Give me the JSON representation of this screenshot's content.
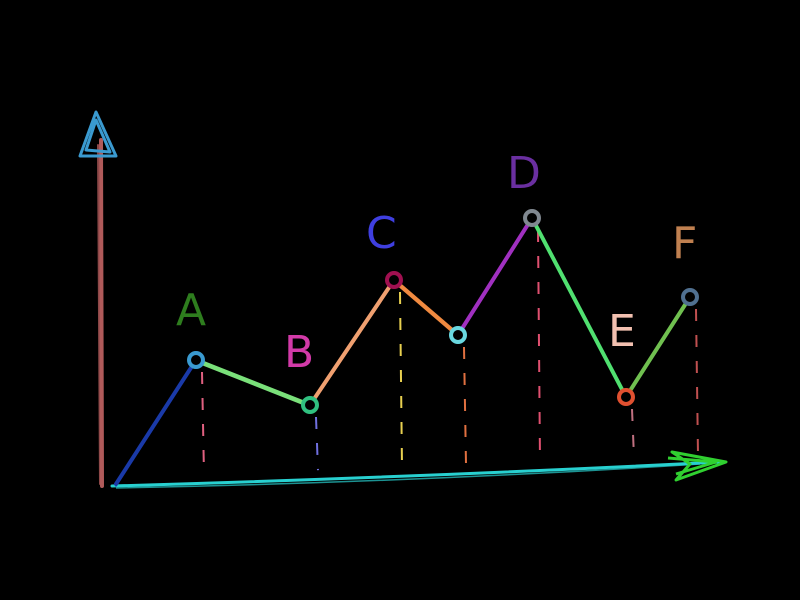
{
  "points": [
    {
      "label": "A",
      "label_color": "#2e7d1e"
    },
    {
      "label": "B",
      "label_color": "#d23aa8"
    },
    {
      "label": "C",
      "label_color": "#3f3fe0"
    },
    {
      "label": "D",
      "label_color": "#6a2fa0"
    },
    {
      "label": "E",
      "label_color": "#f2c0b0"
    },
    {
      "label": "F",
      "label_color": "#c08050"
    }
  ],
  "colors": {
    "background": "#000000",
    "y_axis": "#b05a5a",
    "y_arrow": "#3a9ad0",
    "x_axis": "#28d0d0",
    "x_arrow": "#30d030",
    "segments": [
      "#1a3aa8",
      "#7ae07a",
      "#f0a070",
      "#f08a40",
      "#a030c0",
      "#50e070",
      "#70c050"
    ],
    "markers": [
      "#3a9ad0",
      "#30c080",
      "#a01050",
      "#6ad8e0",
      "#808890",
      "#e05030",
      "#507090"
    ],
    "drop_lines": [
      "#e06080",
      "#7070e0",
      "#e8d050",
      "#e07040",
      "#e05070",
      "#c07080",
      "#c05050"
    ]
  }
}
